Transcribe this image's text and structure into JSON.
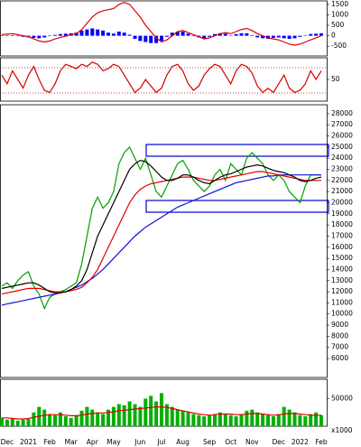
{
  "chart_data": [
    {
      "type": "combo",
      "ylim": [
        -970,
        1670
      ],
      "yticks": [
        1500,
        1000,
        500,
        0,
        -500
      ],
      "series": [
        {
          "type": "bar",
          "color": "#0000ff",
          "values": [
            20,
            30,
            30,
            -20,
            -50,
            -80,
            -100,
            -120,
            -80,
            -20,
            40,
            80,
            100,
            120,
            150,
            250,
            300,
            350,
            300,
            250,
            150,
            100,
            200,
            150,
            50,
            -150,
            -250,
            -300,
            -350,
            -350,
            -250,
            -50,
            150,
            200,
            200,
            100,
            0,
            -80,
            -150,
            -50,
            80,
            120,
            100,
            20,
            80,
            120,
            120,
            30,
            -80,
            -120,
            -150,
            -100,
            -80,
            -120,
            -150,
            -120,
            -50,
            20,
            80,
            100,
            120
          ]
        },
        {
          "type": "line",
          "color": "#e00000",
          "values": [
            50,
            80,
            100,
            50,
            0,
            -50,
            -150,
            -250,
            -300,
            -250,
            -150,
            -80,
            -20,
            50,
            100,
            300,
            600,
            900,
            1100,
            1200,
            1250,
            1300,
            1500,
            1600,
            1500,
            1200,
            900,
            500,
            200,
            -100,
            -300,
            -200,
            0,
            200,
            250,
            150,
            50,
            -50,
            -150,
            -100,
            0,
            100,
            150,
            100,
            200,
            300,
            350,
            250,
            100,
            0,
            -100,
            -150,
            -200,
            -300,
            -400,
            -450,
            -400,
            -300,
            -200,
            -100,
            0
          ]
        }
      ]
    },
    {
      "type": "combo",
      "ylim": [
        0,
        100
      ],
      "yticks": [
        50
      ],
      "series": [
        {
          "type": "line",
          "color": "#d00000",
          "values": [
            60,
            40,
            70,
            50,
            30,
            60,
            80,
            50,
            25,
            20,
            40,
            70,
            85,
            80,
            75,
            85,
            80,
            90,
            85,
            70,
            75,
            85,
            80,
            60,
            40,
            20,
            30,
            50,
            35,
            20,
            30,
            60,
            80,
            85,
            70,
            40,
            25,
            35,
            60,
            75,
            85,
            80,
            60,
            40,
            70,
            85,
            80,
            65,
            35,
            20,
            30,
            20,
            40,
            60,
            30,
            20,
            25,
            40,
            70,
            50,
            70
          ]
        }
      ]
    },
    {
      "type": "combo",
      "ylim": [
        4300,
        28800
      ],
      "yticks": [
        28000,
        27000,
        26000,
        25000,
        24000,
        23000,
        22000,
        21000,
        20000,
        19000,
        18000,
        17000,
        16000,
        15000,
        14000,
        13000,
        12000,
        11000,
        10000,
        9000,
        8000,
        7000,
        6000
      ],
      "series": [
        {
          "type": "line",
          "color": "#00a000",
          "values": [
            12500,
            12800,
            12300,
            13000,
            13500,
            13800,
            12500,
            11800,
            10500,
            11500,
            11800,
            12000,
            12200,
            12500,
            12800,
            14500,
            17000,
            19500,
            20500,
            19500,
            20000,
            21000,
            23500,
            24500,
            25000,
            24000,
            23000,
            24000,
            22500,
            21000,
            20500,
            21500,
            22500,
            23500,
            23800,
            23000,
            22000,
            21500,
            21000,
            21500,
            22500,
            23000,
            22000,
            23500,
            23000,
            22500,
            24000,
            24500,
            24000,
            23500,
            22500,
            22000,
            22500,
            22000,
            21000,
            20500,
            20000,
            21500,
            22500,
            22500,
            22500
          ]
        },
        {
          "type": "line",
          "color": "#1010e0",
          "values": [
            10800,
            10900,
            11000,
            11100,
            11200,
            11300,
            11400,
            11500,
            11600,
            11700,
            11800,
            11900,
            12000,
            12200,
            12400,
            12600,
            12900,
            13200,
            13600,
            14000,
            14500,
            15000,
            15500,
            16000,
            16500,
            17000,
            17400,
            17800,
            18100,
            18400,
            18700,
            19000,
            19300,
            19600,
            19800,
            20000,
            20200,
            20400,
            20600,
            20800,
            21000,
            21200,
            21400,
            21600,
            21800,
            21900,
            22000,
            22100,
            22200,
            22300,
            22400,
            22400,
            22500,
            22500,
            22500,
            22500,
            22500,
            22500,
            22500,
            22500,
            22500
          ]
        },
        {
          "type": "line",
          "color": "#e00000",
          "values": [
            11800,
            11900,
            12000,
            12100,
            12200,
            12300,
            12300,
            12300,
            12200,
            12100,
            12000,
            12000,
            12000,
            12100,
            12200,
            12400,
            12800,
            13300,
            14000,
            15000,
            16000,
            17000,
            18000,
            19000,
            20000,
            20700,
            21200,
            21500,
            21700,
            21800,
            21900,
            22000,
            22100,
            22200,
            22300,
            22300,
            22300,
            22200,
            22100,
            22000,
            22000,
            22100,
            22200,
            22300,
            22400,
            22500,
            22600,
            22700,
            22800,
            22800,
            22700,
            22600,
            22500,
            22400,
            22300,
            22200,
            22100,
            22000,
            22000,
            22000,
            22000
          ]
        },
        {
          "type": "line",
          "color": "#000000",
          "values": [
            12300,
            12400,
            12500,
            12600,
            12700,
            12800,
            12800,
            12600,
            12300,
            12000,
            11900,
            11900,
            12000,
            12200,
            12500,
            13000,
            14000,
            15500,
            17000,
            18000,
            19000,
            20000,
            21000,
            22000,
            23000,
            23500,
            23800,
            23700,
            23300,
            22800,
            22300,
            22000,
            22000,
            22200,
            22500,
            22500,
            22300,
            22000,
            21800,
            21700,
            22000,
            22300,
            22500,
            22600,
            22800,
            23000,
            23200,
            23300,
            23400,
            23300,
            23100,
            22900,
            22800,
            22700,
            22500,
            22300,
            22000,
            21900,
            22000,
            22200,
            22300
          ]
        }
      ]
    },
    {
      "type": "combo",
      "ylim": [
        0,
        85000
      ],
      "yticks": [
        50000
      ],
      "unit_label": "x1000",
      "categories": [
        null,
        "Dec",
        null,
        null,
        null,
        "2021",
        null,
        null,
        null,
        "Feb",
        null,
        null,
        null,
        "Mar",
        null,
        null,
        null,
        "Apr",
        null,
        null,
        null,
        "May",
        null,
        null,
        null,
        null,
        "Jun",
        null,
        null,
        null,
        "Jul",
        null,
        null,
        null,
        "Aug",
        null,
        null,
        null,
        null,
        "Sep",
        null,
        null,
        null,
        "Oct",
        null,
        null,
        null,
        "Nov",
        null,
        null,
        null,
        null,
        "Dec",
        null,
        null,
        null,
        "2022",
        null,
        null,
        null,
        "Feb"
      ],
      "series": [
        {
          "type": "bar",
          "color": "#00b000",
          "values": [
            15000,
            12000,
            14000,
            10000,
            12000,
            13000,
            25000,
            35000,
            30000,
            22000,
            20000,
            25000,
            18000,
            15000,
            20000,
            28000,
            35000,
            30000,
            25000,
            22000,
            30000,
            35000,
            40000,
            38000,
            45000,
            40000,
            35000,
            50000,
            55000,
            45000,
            60000,
            40000,
            35000,
            30000,
            28000,
            25000,
            22000,
            20000,
            18000,
            20000,
            22000,
            25000,
            23000,
            20000,
            18000,
            22000,
            28000,
            30000,
            25000,
            22000,
            20000,
            18000,
            22000,
            35000,
            30000,
            25000,
            20000,
            18000,
            22000,
            25000,
            20000
          ]
        },
        {
          "type": "line",
          "color": "#e00000",
          "values": [
            15000,
            15000,
            14000,
            13000,
            13000,
            14000,
            16000,
            18000,
            20000,
            21000,
            21000,
            21000,
            20000,
            19000,
            19000,
            20000,
            22000,
            23000,
            24000,
            24000,
            25000,
            26000,
            28000,
            29000,
            30000,
            31000,
            32000,
            33000,
            34000,
            35000,
            35000,
            34000,
            32000,
            30000,
            28000,
            26000,
            24000,
            22000,
            21000,
            20000,
            21000,
            22000,
            22000,
            22000,
            21000,
            21000,
            22000,
            23000,
            23000,
            22000,
            21000,
            20000,
            21000,
            22000,
            23000,
            23000,
            22000,
            21000,
            20000,
            20000,
            20000
          ]
        }
      ]
    }
  ]
}
